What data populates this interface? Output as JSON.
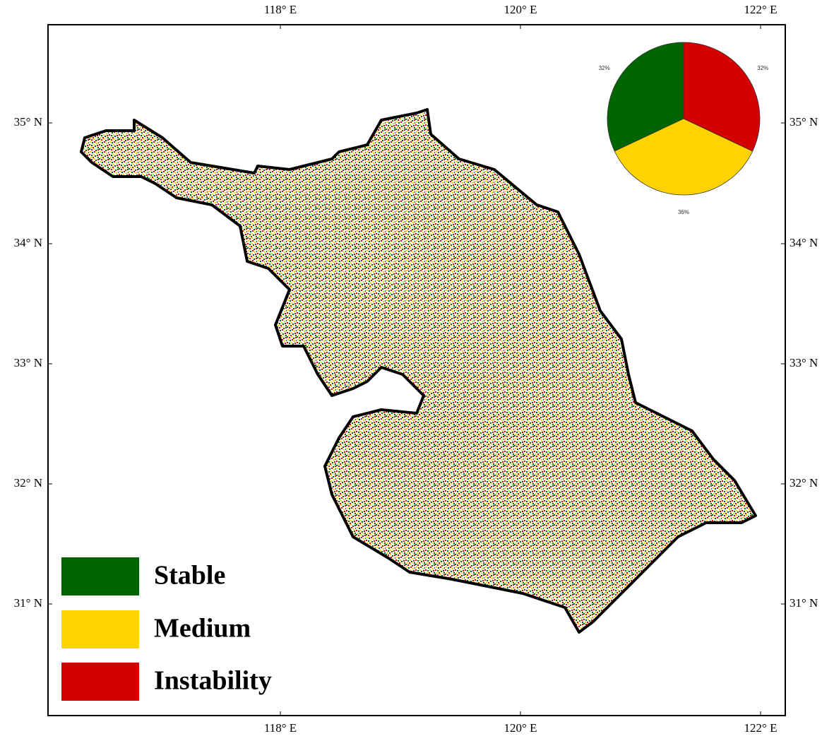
{
  "map": {
    "lon_labels": [
      "118° E",
      "120° E",
      "122° E"
    ],
    "lat_labels": [
      "35° N",
      "34° N",
      "33° N",
      "32° N",
      "31° N"
    ]
  },
  "chart_data": {
    "type": "pie",
    "categories": [
      "Stable",
      "Medium",
      "Instability"
    ],
    "values": [
      32,
      36,
      32
    ],
    "value_labels": [
      "32%",
      "36%",
      "32%"
    ],
    "colors": [
      "#006400",
      "#ffd200",
      "#d40000"
    ]
  }
}
